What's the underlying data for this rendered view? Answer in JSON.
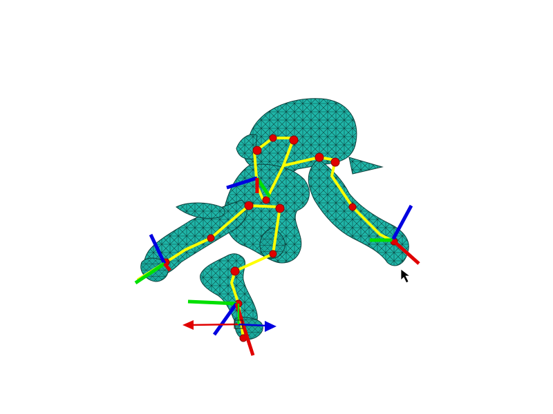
{
  "viewport": {
    "background": "#ffffff"
  },
  "colors": {
    "mesh_fill": "#1fb5a8",
    "mesh_fill_dark": "#138f86",
    "mesh_wire": "#0b3f3b",
    "skeleton_bone": "#ffff00",
    "joint": "#e00000",
    "axis_x": "#e00000",
    "axis_y": "#00e000",
    "axis_z": "#0000e0",
    "cursor": "#000000"
  },
  "icons": {
    "mouse_cursor": "arrow-cursor-icon",
    "transform_gizmo": "move-gizmo-icon"
  }
}
